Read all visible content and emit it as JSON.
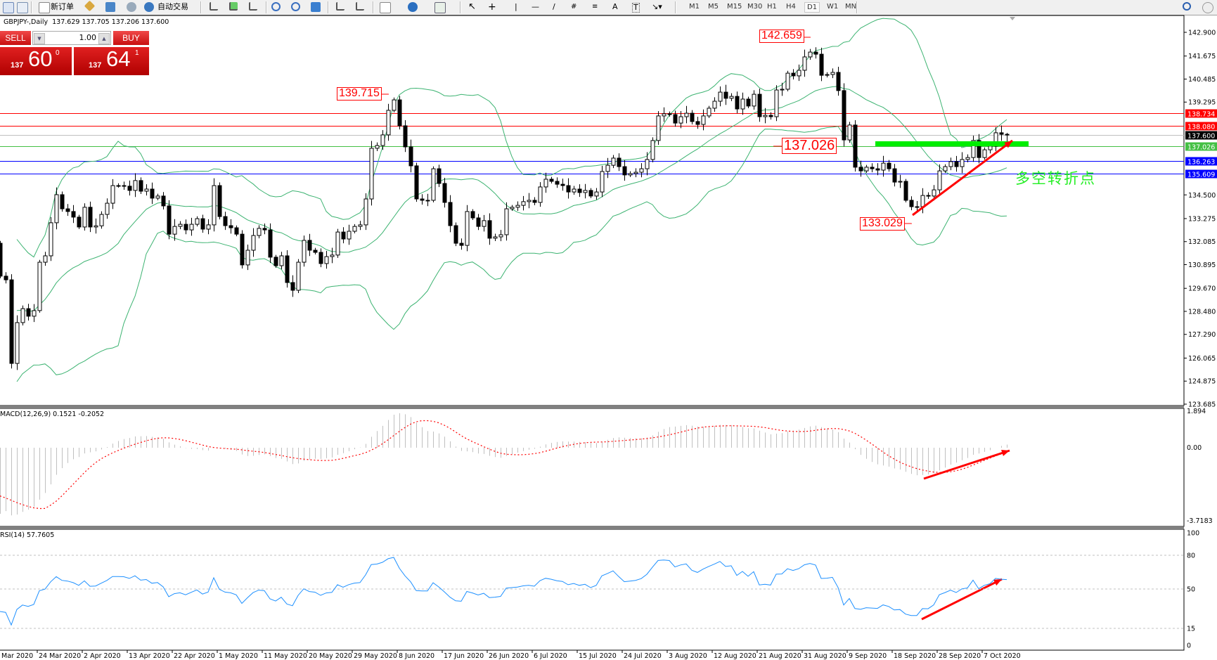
{
  "toolbar": {
    "new_order_label": "新订单",
    "autotrade_label": "自动交易",
    "timeframes": [
      "M1",
      "M5",
      "M15",
      "M30",
      "H1",
      "H4",
      "D1",
      "W1",
      "MN"
    ],
    "selected_timeframe": "D1",
    "drawing_tool_labels": {
      "text": "A",
      "text_label": "T"
    }
  },
  "chart_header": {
    "symbol": "GBPJPY-,Daily",
    "ohlc": "137.629 137.705 137.206 137.600"
  },
  "trade_panel": {
    "sell_label": "SELL",
    "buy_label": "BUY",
    "lot": "1.00",
    "sell_price": {
      "prefix": "137",
      "big": "60",
      "pip": "0"
    },
    "buy_price": {
      "prefix": "137",
      "big": "64",
      "pip": "1"
    },
    "color": "#d01818"
  },
  "note_text": "多空转折点",
  "chart_data": {
    "type": "candlestick",
    "symbol": "GBPJPY",
    "timeframe": "Daily",
    "closes": [
      130.3,
      130.11,
      125.79,
      127.9,
      128.62,
      128.23,
      128.52,
      131.02,
      131.35,
      133.06,
      134.51,
      133.78,
      133.64,
      133.35,
      132.84,
      133.86,
      132.84,
      132.9,
      133.49,
      134.07,
      134.98,
      134.98,
      134.95,
      134.73,
      135.24,
      134.69,
      134.8,
      134.33,
      134.44,
      133.93,
      132.47,
      132.87,
      132.98,
      132.69,
      132.98,
      133.27,
      132.73,
      132.95,
      134.98,
      133.38,
      132.91,
      132.8,
      132.47,
      130.88,
      131.64,
      132.4,
      132.77,
      132.69,
      131.28,
      130.84,
      131.35,
      129.97,
      129.57,
      131.02,
      132.15,
      131.64,
      131.53,
      130.95,
      131.31,
      131.39,
      132.58,
      132.22,
      132.62,
      132.87,
      132.95,
      134.29,
      136.91,
      137.05,
      137.6,
      138.87,
      139.41,
      138.07,
      136.98,
      136.0,
      134.29,
      134.22,
      134.22,
      135.85,
      135.09,
      134.11,
      132.91,
      132.0,
      131.89,
      133.64,
      133.31,
      132.87,
      133.17,
      132.26,
      132.33,
      132.44,
      133.78,
      133.86,
      133.96,
      134.15,
      134.22,
      134.11,
      134.91,
      135.31,
      135.2,
      135.05,
      134.98,
      134.65,
      134.8,
      134.62,
      134.73,
      134.44,
      134.65,
      135.71,
      136.03,
      136.4,
      135.96,
      135.53,
      135.6,
      135.67,
      135.85,
      136.33,
      137.31,
      138.58,
      138.69,
      138.65,
      138.21,
      138.54,
      138.72,
      138.29,
      138.14,
      138.58,
      138.98,
      139.34,
      139.81,
      139.49,
      139.59,
      138.94,
      139.45,
      139.09,
      139.7,
      138.54,
      138.61,
      138.54,
      139.92,
      139.96,
      140.79,
      140.65,
      140.94,
      141.63,
      141.88,
      141.77,
      140.68,
      140.72,
      140.83,
      139.89,
      137.34,
      138.11,
      135.93,
      135.74,
      135.93,
      135.85,
      135.78,
      136.14,
      135.85,
      135.16,
      135.2,
      134.22,
      133.89,
      133.89,
      134.47,
      134.44,
      134.76,
      135.74,
      135.96,
      136.22,
      135.96,
      136.33,
      136.43,
      137.31,
      136.43,
      136.83,
      137.02,
      137.71,
      137.63,
      137.6
    ],
    "last_bar": {
      "open": 137.629,
      "high": 137.705,
      "low": 137.206,
      "close": 137.6
    },
    "ylim": [
      123.685,
      142.9
    ],
    "price_ticks": [
      "142.900",
      "141.675",
      "140.485",
      "139.295",
      "134.500",
      "133.275",
      "132.085",
      "130.895",
      "129.670",
      "128.480",
      "127.290",
      "126.065",
      "124.875",
      "123.685"
    ],
    "x_tick_labels": [
      "Mar 2020",
      "24 Mar 2020",
      "2 Apr 2020",
      "13 Apr 2020",
      "22 Apr 2020",
      "1 May 2020",
      "11 May 2020",
      "20 May 2020",
      "29 May 2020",
      "8 Jun 2020",
      "17 Jun 2020",
      "26 Jun 2020",
      "6 Jul 2020",
      "15 Jul 2020",
      "24 Jul 2020",
      "3 Aug 2020",
      "12 Aug 2020",
      "21 Aug 2020",
      "31 Aug 2020",
      "9 Sep 2020",
      "18 Sep 2020",
      "28 Sep 2020",
      "7 Oct 2020"
    ],
    "levels": [
      {
        "value": "138.734",
        "color": "#ff0000",
        "text_color": "#ffffff"
      },
      {
        "value": "138.080",
        "color": "#ff0000",
        "text_color": "#ffffff"
      },
      {
        "value": "137.600",
        "color": "#000000",
        "line_color": "#c0c0c0",
        "text_color": "#ffffff"
      },
      {
        "value": "137.026",
        "color": "#44c044",
        "text_color": "#ffffff"
      },
      {
        "value": "136.263",
        "color": "#0000ff",
        "text_color": "#ffffff"
      },
      {
        "value": "135.609",
        "color": "#0000ff",
        "text_color": "#ffffff"
      }
    ],
    "annotations": [
      {
        "text": "142.659",
        "kind": "high"
      },
      {
        "text": "139.715",
        "kind": "high"
      },
      {
        "text": "137.026",
        "kind": "level"
      },
      {
        "text": "133.029",
        "kind": "low"
      }
    ],
    "overlays": {
      "bollinger": {
        "period": 20,
        "deviation": 2,
        "color": "#3cb371"
      }
    },
    "indicators": [
      {
        "title": "MACD(12,26,9) 0.1521 -0.2052",
        "ticks": [
          "1.894",
          "0.00",
          "-3.7183"
        ],
        "ylim": [
          -3.7183,
          1.894
        ],
        "histogram_color": "#c0c0c0",
        "signal_color": "#ff0000"
      },
      {
        "title": "RSI(14) 57.7605",
        "ticks": [
          "100",
          "80",
          "50",
          "15",
          "0"
        ],
        "levels": [
          80,
          50,
          15
        ],
        "ylim": [
          0,
          100
        ],
        "color": "#1e90ff"
      }
    ],
    "arrows_color": "#ff0000",
    "support_band_color": "#00ee00"
  }
}
